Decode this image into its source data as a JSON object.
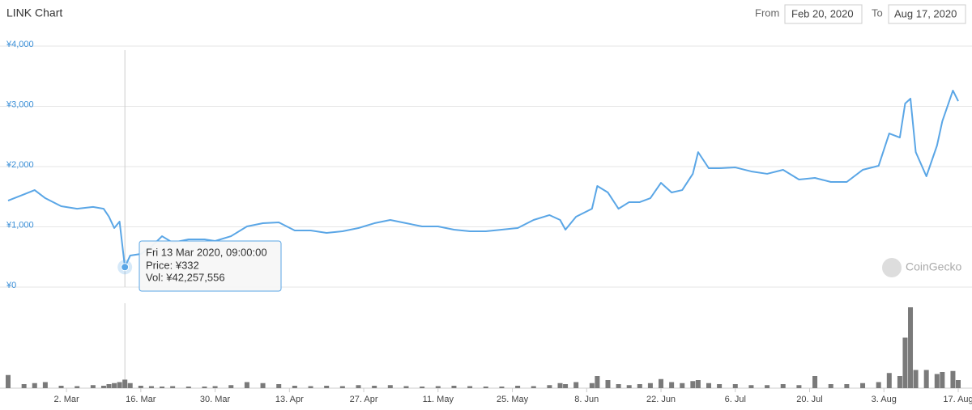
{
  "chart_data": {
    "type": "line",
    "title": "LINK Chart",
    "range_picker": {
      "from_label": "From",
      "from": "Feb 20, 2020",
      "to_label": "To",
      "to": "Aug 17, 2020"
    },
    "watermark": "CoinGecko",
    "x": [
      "2020-02-20",
      "2020-02-23",
      "2020-02-25",
      "2020-02-27",
      "2020-03-01",
      "2020-03-04",
      "2020-03-07",
      "2020-03-09",
      "2020-03-10",
      "2020-03-11",
      "2020-03-12",
      "2020-03-13",
      "2020-03-14",
      "2020-03-16",
      "2020-03-18",
      "2020-03-20",
      "2020-03-22",
      "2020-03-25",
      "2020-03-28",
      "2020-03-30",
      "2020-04-02",
      "2020-04-05",
      "2020-04-08",
      "2020-04-11",
      "2020-04-14",
      "2020-04-17",
      "2020-04-20",
      "2020-04-23",
      "2020-04-26",
      "2020-04-29",
      "2020-05-02",
      "2020-05-05",
      "2020-05-08",
      "2020-05-11",
      "2020-05-14",
      "2020-05-17",
      "2020-05-20",
      "2020-05-23",
      "2020-05-26",
      "2020-05-29",
      "2020-06-01",
      "2020-06-03",
      "2020-06-04",
      "2020-06-06",
      "2020-06-09",
      "2020-06-10",
      "2020-06-12",
      "2020-06-14",
      "2020-06-16",
      "2020-06-18",
      "2020-06-20",
      "2020-06-22",
      "2020-06-24",
      "2020-06-26",
      "2020-06-28",
      "2020-06-29",
      "2020-07-01",
      "2020-07-03",
      "2020-07-06",
      "2020-07-09",
      "2020-07-12",
      "2020-07-15",
      "2020-07-18",
      "2020-07-21",
      "2020-07-24",
      "2020-07-27",
      "2020-07-30",
      "2020-08-02",
      "2020-08-04",
      "2020-08-06",
      "2020-08-07",
      "2020-08-08",
      "2020-08-09",
      "2020-08-11",
      "2020-08-13",
      "2020-08-14",
      "2020-08-16",
      "2020-08-17"
    ],
    "series": [
      {
        "name": "Price",
        "color": "#5aa6e6",
        "values": [
          1436,
          1540,
          1610,
          1476,
          1342,
          1300,
          1330,
          1300,
          1168,
          980,
          1087,
          332,
          523,
          550,
          671,
          845,
          738,
          792,
          792,
          765,
          845,
          1007,
          1060,
          1074,
          940,
          940,
          900,
          926,
          980,
          1060,
          1114,
          1060,
          1007,
          1007,
          953,
          926,
          926,
          953,
          980,
          1114,
          1195,
          1114,
          953,
          1168,
          1300,
          1678,
          1570,
          1300,
          1410,
          1410,
          1476,
          1730,
          1570,
          1610,
          1880,
          2240,
          1973,
          1973,
          1986,
          1920,
          1880,
          1946,
          1785,
          1812,
          1745,
          1745,
          1946,
          2013,
          2550,
          2483,
          3047,
          3128,
          2240,
          1839,
          2349,
          2752,
          3262,
          3087
        ]
      },
      {
        "name": "Volume",
        "color": "#7a7a7a",
        "axis": "y2",
        "values": [
          65000000,
          20000000,
          25000000,
          30000000,
          12000000,
          10000000,
          15000000,
          12000000,
          20000000,
          25000000,
          30000000,
          42257556,
          25000000,
          12000000,
          10000000,
          8000000,
          10000000,
          8000000,
          8000000,
          10000000,
          15000000,
          30000000,
          25000000,
          20000000,
          12000000,
          10000000,
          12000000,
          10000000,
          15000000,
          12000000,
          15000000,
          10000000,
          8000000,
          10000000,
          12000000,
          10000000,
          8000000,
          8000000,
          12000000,
          10000000,
          15000000,
          25000000,
          20000000,
          30000000,
          25000000,
          60000000,
          40000000,
          20000000,
          15000000,
          20000000,
          25000000,
          45000000,
          30000000,
          25000000,
          35000000,
          40000000,
          25000000,
          20000000,
          20000000,
          15000000,
          15000000,
          20000000,
          15000000,
          60000000,
          20000000,
          20000000,
          25000000,
          30000000,
          75000000,
          60000000,
          250000000,
          400000000,
          90000000,
          90000000,
          70000000,
          80000000,
          85000000,
          40000000
        ]
      }
    ],
    "xlim": [
      "2020-02-20",
      "2020-08-17"
    ],
    "xticks": [
      {
        "value": "2020-03-02",
        "label": "2. Mar"
      },
      {
        "value": "2020-03-16",
        "label": "16. Mar"
      },
      {
        "value": "2020-03-30",
        "label": "30. Mar"
      },
      {
        "value": "2020-04-13",
        "label": "13. Apr"
      },
      {
        "value": "2020-04-27",
        "label": "27. Apr"
      },
      {
        "value": "2020-05-11",
        "label": "11. May"
      },
      {
        "value": "2020-05-25",
        "label": "25. May"
      },
      {
        "value": "2020-06-08",
        "label": "8. Jun"
      },
      {
        "value": "2020-06-22",
        "label": "22. Jun"
      },
      {
        "value": "2020-07-06",
        "label": "6. Jul"
      },
      {
        "value": "2020-07-20",
        "label": "20. Jul"
      },
      {
        "value": "2020-08-03",
        "label": "3. Aug"
      },
      {
        "value": "2020-08-17",
        "label": "17. Aug"
      }
    ],
    "ylim": [
      0,
      4000
    ],
    "yticks": [
      {
        "value": 0,
        "label": "¥0"
      },
      {
        "value": 1000,
        "label": "¥1,000"
      },
      {
        "value": 2000,
        "label": "¥2,000"
      },
      {
        "value": 3000,
        "label": "¥3,000"
      },
      {
        "value": 4000,
        "label": "¥4,000"
      }
    ],
    "grid": true,
    "tooltip": {
      "index": 11,
      "title": "Fri 13 Mar 2020, 09:00:00",
      "lines": [
        "Price: ¥332",
        "Vol: ¥42,257,556"
      ]
    }
  }
}
